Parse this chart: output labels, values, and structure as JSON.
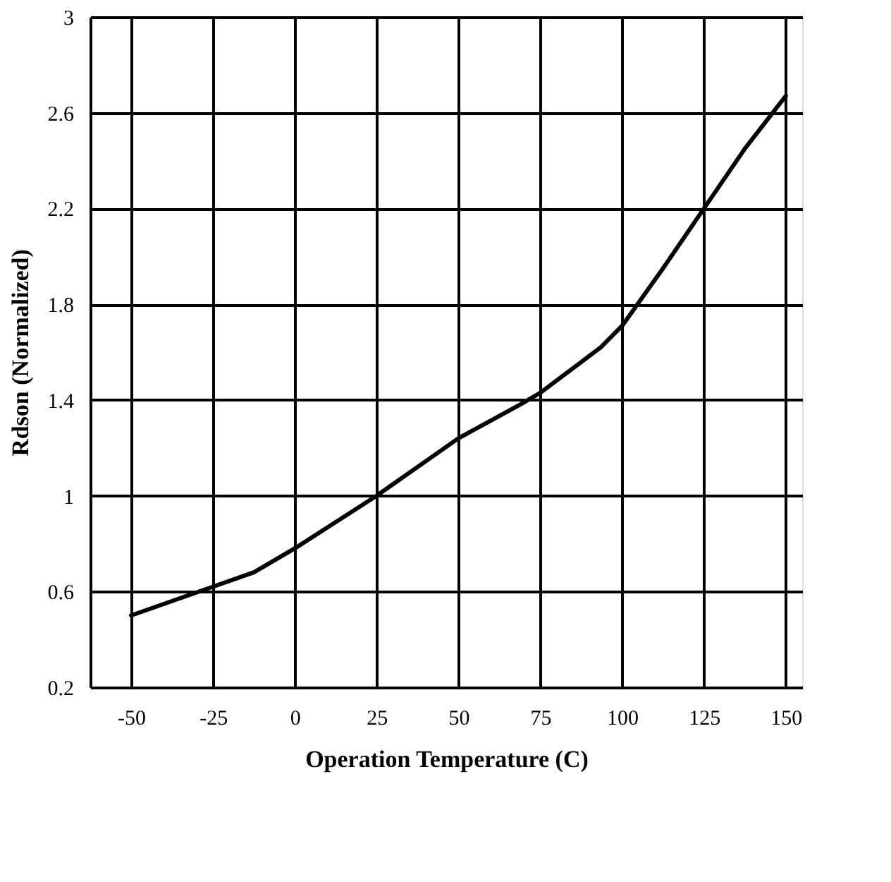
{
  "chart_data": {
    "type": "line",
    "xlabel": "Operation Temperature (C)",
    "ylabel": "Rdson (Normalized)",
    "x": [
      -50,
      -25,
      -12.5,
      0,
      25,
      50,
      68.75,
      75,
      93.5,
      100,
      112.5,
      125,
      137.5,
      150
    ],
    "series": [
      {
        "color": "#000000",
        "values": [
          0.5,
          0.62,
          0.68,
          0.78,
          1.0,
          1.24,
          1.38,
          1.43,
          1.62,
          1.71,
          1.95,
          2.2,
          2.45,
          2.67
        ]
      }
    ],
    "xlim": [
      -62.5,
      155
    ],
    "xticks": [
      -50,
      -25,
      0,
      25,
      50,
      75,
      100,
      125,
      150
    ],
    "ylim": [
      0.2,
      3
    ],
    "yticks": [
      0.2,
      0.6,
      1,
      1.4,
      1.8,
      2.2,
      2.6,
      3
    ],
    "grid": true,
    "marker": "none",
    "line_style": "solid"
  }
}
